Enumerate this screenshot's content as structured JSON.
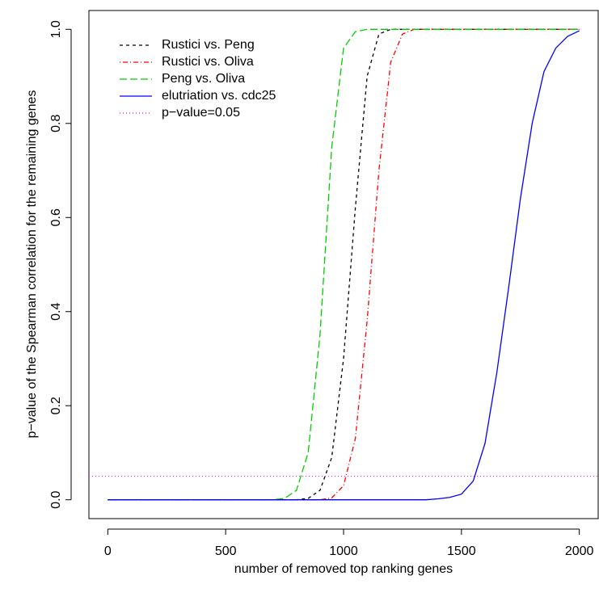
{
  "chart_data": {
    "type": "line",
    "xlabel": "number of removed top ranking genes",
    "ylabel": "p−value of the Spearman correlation for the remaining genes",
    "x": [
      0,
      50,
      100,
      150,
      200,
      250,
      300,
      350,
      400,
      450,
      500,
      550,
      600,
      650,
      700,
      750,
      800,
      850,
      900,
      950,
      1000,
      1050,
      1100,
      1150,
      1200,
      1250,
      1300,
      1350,
      1400,
      1450,
      1500,
      1550,
      1600,
      1650,
      1700,
      1750,
      1800,
      1850,
      1900,
      1950,
      2000
    ],
    "series": [
      {
        "name": "Rustici vs. Peng",
        "color": "#000000",
        "line_style": "dashed",
        "values": [
          0,
          0,
          0,
          0,
          0,
          0,
          0,
          0,
          0,
          0,
          0,
          0,
          0,
          0,
          0,
          0,
          0,
          0.003,
          0.02,
          0.09,
          0.3,
          0.62,
          0.9,
          0.99,
          1,
          1,
          1,
          1,
          1,
          1,
          1,
          1,
          1,
          1,
          1,
          1,
          1,
          1,
          1,
          1,
          1
        ]
      },
      {
        "name": "Rustici vs. Oliva",
        "color": "#ff0000",
        "line_style": "dotdash",
        "values": [
          0,
          0,
          0,
          0,
          0,
          0,
          0,
          0,
          0,
          0,
          0,
          0,
          0,
          0,
          0,
          0,
          0,
          0,
          0,
          0.004,
          0.03,
          0.13,
          0.38,
          0.7,
          0.93,
          0.99,
          1,
          1,
          1,
          1,
          1,
          1,
          1,
          1,
          1,
          1,
          1,
          1,
          1,
          1,
          1
        ]
      },
      {
        "name": "Peng vs. Oliva",
        "color": "#00cd00",
        "line_style": "longdash",
        "values": [
          0,
          0,
          0,
          0,
          0,
          0,
          0,
          0,
          0,
          0,
          0,
          0,
          0,
          0,
          0,
          0.003,
          0.02,
          0.1,
          0.35,
          0.75,
          0.96,
          0.995,
          1,
          1,
          1,
          1,
          1,
          1,
          1,
          1,
          1,
          1,
          1,
          1,
          1,
          1,
          1,
          1,
          1,
          1,
          1
        ]
      },
      {
        "name": "elutriation vs. cdc25",
        "color": "#0000ff",
        "line_style": "solid",
        "values": [
          0,
          0,
          0,
          0,
          0,
          0,
          0,
          0,
          0,
          0,
          0,
          0,
          0,
          0,
          0,
          0,
          0,
          0,
          0,
          0,
          0,
          0,
          0,
          0,
          0,
          0,
          0,
          0,
          0.002,
          0.005,
          0.012,
          0.04,
          0.12,
          0.27,
          0.45,
          0.64,
          0.8,
          0.91,
          0.96,
          0.985,
          0.997
        ]
      }
    ],
    "reference_line": {
      "name": "p−value=0.05",
      "value": 0.05,
      "color": "#ff00ff",
      "line_style": "dotted"
    },
    "xlim": [
      -80,
      2080
    ],
    "ylim": [
      -0.04,
      1.04
    ],
    "xticks": [
      0,
      500,
      1000,
      1500,
      2000
    ],
    "yticks": [
      {
        "value": 0,
        "label": "0.0"
      },
      0.2,
      0.4,
      0.6,
      0.8,
      {
        "value": 1,
        "label": "1.0"
      }
    ],
    "legend": "top-left",
    "grid": false
  }
}
